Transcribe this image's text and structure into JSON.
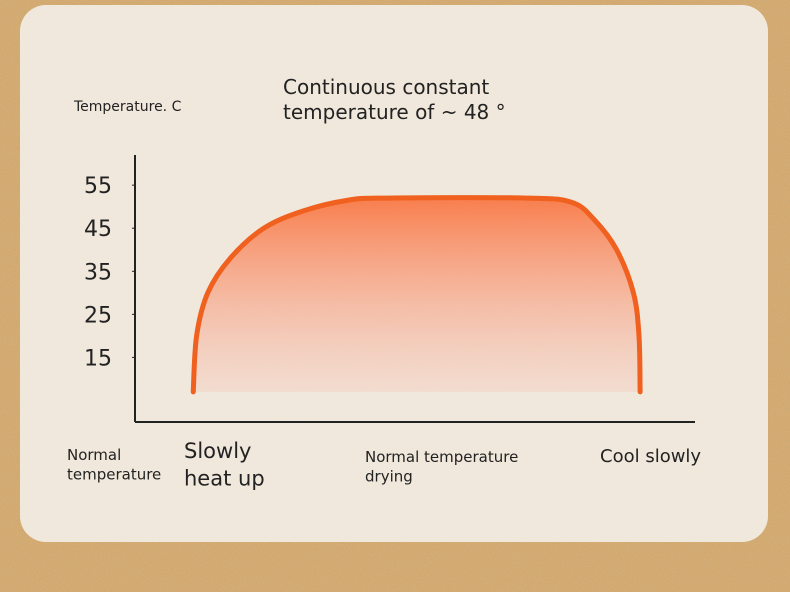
{
  "chart_data": {
    "type": "area",
    "title": "Continuous constant temperature of ~ 48 °",
    "y_label": "Temperature. C",
    "stages": [
      "Normal temperature",
      "Slowly heat up",
      "Normal temperature drying",
      "Cool slowly"
    ],
    "ylim": [
      0,
      62
    ],
    "yticks": [
      55,
      45,
      35,
      25,
      15
    ],
    "xlim": [
      0,
      100
    ],
    "series": [
      {
        "color": "#f0601e",
        "x": [
          10.4,
          11,
          13,
          17,
          23,
          30,
          38,
          45,
          70,
          78,
          82,
          86,
          89,
          90,
          90.2
        ],
        "values": [
          7,
          20,
          30,
          38,
          45,
          49,
          51.5,
          52,
          52,
          51,
          47,
          40,
          30,
          20,
          7
        ]
      }
    ]
  }
}
